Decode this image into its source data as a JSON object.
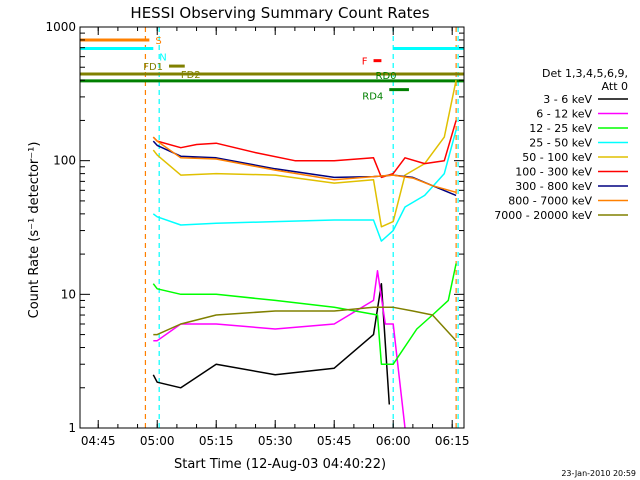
{
  "chart_data": {
    "type": "line",
    "title": "HESSI Observing Summary Count Rates",
    "xlabel": "Start Time (12-Aug-03 04:40:22)",
    "ylabel": "Count Rate (s⁻¹ detector⁻¹)",
    "yscale": "log",
    "xlim": [
      "04:40:22",
      "06:18:00"
    ],
    "ylim": [
      1,
      1000
    ],
    "x_ticks": [
      "04:45",
      "05:00",
      "05:15",
      "05:30",
      "05:45",
      "06:00",
      "06:15"
    ],
    "y_ticks": [
      "1",
      "10",
      "100",
      "1000"
    ],
    "grid": false,
    "legend_position": "right",
    "legend_title": [
      "Det 1,3,4,5,6,9,",
      "Att 0"
    ],
    "footer_date": "23-Jan-2010 20:59",
    "series": [
      {
        "name": "3 - 6 keV",
        "color": "#000000",
        "points": [
          [
            "04:59:00",
            2.5
          ],
          [
            "05:00:00",
            2.2
          ],
          [
            "05:06:00",
            2.0
          ],
          [
            "05:15:00",
            3.0
          ],
          [
            "05:30:00",
            2.5
          ],
          [
            "05:45:00",
            2.8
          ],
          [
            "05:55:00",
            5.0
          ],
          [
            "05:57:00",
            12.0
          ],
          [
            "05:59:00",
            1.5
          ]
        ]
      },
      {
        "name": "6 - 12 keV",
        "color": "#ff00ff",
        "points": [
          [
            "04:59:00",
            4.5
          ],
          [
            "05:00:00",
            4.5
          ],
          [
            "05:06:00",
            6.0
          ],
          [
            "05:15:00",
            6.0
          ],
          [
            "05:30:00",
            5.5
          ],
          [
            "05:45:00",
            6.0
          ],
          [
            "05:55:00",
            9.0
          ],
          [
            "05:56:00",
            15.0
          ],
          [
            "05:58:00",
            6.0
          ],
          [
            "06:00:00",
            6.0
          ],
          [
            "06:03:00",
            1.0
          ]
        ]
      },
      {
        "name": "12 - 25 keV",
        "color": "#00ff00",
        "points": [
          [
            "04:59:00",
            12.0
          ],
          [
            "05:00:00",
            11.0
          ],
          [
            "05:06:00",
            10.0
          ],
          [
            "05:15:00",
            10.0
          ],
          [
            "05:30:00",
            9.0
          ],
          [
            "05:45:00",
            8.0
          ],
          [
            "05:56:00",
            7.0
          ],
          [
            "05:57:00",
            3.0
          ],
          [
            "06:00:00",
            3.0
          ],
          [
            "06:06:00",
            5.5
          ],
          [
            "06:10:00",
            7.0
          ],
          [
            "06:14:00",
            9.0
          ],
          [
            "06:16:00",
            17.0
          ]
        ]
      },
      {
        "name": "25 - 50 keV",
        "color": "#00ffff",
        "points": [
          [
            "04:59:00",
            40.0
          ],
          [
            "05:00:00",
            38.0
          ],
          [
            "05:06:00",
            33.0
          ],
          [
            "05:15:00",
            34.0
          ],
          [
            "05:30:00",
            35.0
          ],
          [
            "05:45:00",
            36.0
          ],
          [
            "05:55:00",
            36.0
          ],
          [
            "05:57:00",
            25.0
          ],
          [
            "06:00:00",
            30.0
          ],
          [
            "06:03:00",
            45.0
          ],
          [
            "06:08:00",
            55.0
          ],
          [
            "06:13:00",
            80.0
          ],
          [
            "06:16:00",
            170.0
          ]
        ]
      },
      {
        "name": "50 - 100 keV",
        "color": "#e0c000",
        "points": [
          [
            "04:59:00",
            120.0
          ],
          [
            "05:00:00",
            110.0
          ],
          [
            "05:06:00",
            78.0
          ],
          [
            "05:15:00",
            80.0
          ],
          [
            "05:30:00",
            78.0
          ],
          [
            "05:45:00",
            68.0
          ],
          [
            "05:55:00",
            72.0
          ],
          [
            "05:57:00",
            32.0
          ],
          [
            "06:00:00",
            35.0
          ],
          [
            "06:03:00",
            78.0
          ],
          [
            "06:08:00",
            95.0
          ],
          [
            "06:13:00",
            150.0
          ],
          [
            "06:16:00",
            400.0
          ]
        ]
      },
      {
        "name": "100 - 300 keV",
        "color": "#ff0000",
        "points": [
          [
            "04:59:00",
            150.0
          ],
          [
            "05:00:00",
            140.0
          ],
          [
            "05:06:00",
            125.0
          ],
          [
            "05:10:00",
            132.0
          ],
          [
            "05:15:00",
            135.0
          ],
          [
            "05:25:00",
            115.0
          ],
          [
            "05:35:00",
            100.0
          ],
          [
            "05:45:00",
            100.0
          ],
          [
            "05:55:00",
            105.0
          ],
          [
            "05:57:00",
            75.0
          ],
          [
            "06:00:00",
            80.0
          ],
          [
            "06:03:00",
            105.0
          ],
          [
            "06:08:00",
            95.0
          ],
          [
            "06:13:00",
            100.0
          ],
          [
            "06:16:00",
            200.0
          ]
        ]
      },
      {
        "name": "300 - 800 keV",
        "color": "#000080",
        "points": [
          [
            "04:59:00",
            140.0
          ],
          [
            "05:00:00",
            130.0
          ],
          [
            "05:06:00",
            108.0
          ],
          [
            "05:15:00",
            105.0
          ],
          [
            "05:30:00",
            87.0
          ],
          [
            "05:45:00",
            75.0
          ],
          [
            "05:55:00",
            76.0
          ],
          [
            "06:00:00",
            78.0
          ],
          [
            "06:05:00",
            75.0
          ],
          [
            "06:10:00",
            65.0
          ],
          [
            "06:16:00",
            55.0
          ]
        ]
      },
      {
        "name": "800 - 7000 keV",
        "color": "#ff8000",
        "points": [
          [
            "04:59:00",
            150.0
          ],
          [
            "05:00:00",
            140.0
          ],
          [
            "05:06:00",
            105.0
          ],
          [
            "05:15:00",
            103.0
          ],
          [
            "05:30:00",
            85.0
          ],
          [
            "05:45:00",
            72.0
          ],
          [
            "05:55:00",
            76.0
          ],
          [
            "06:00:00",
            78.0
          ],
          [
            "06:05:00",
            74.0
          ],
          [
            "06:10:00",
            65.0
          ],
          [
            "06:16:00",
            58.0
          ]
        ]
      },
      {
        "name": "7000 - 20000 keV",
        "color": "#808000",
        "points": [
          [
            "04:59:00",
            5.0
          ],
          [
            "05:00:00",
            5.0
          ],
          [
            "05:06:00",
            6.0
          ],
          [
            "05:15:00",
            7.0
          ],
          [
            "05:30:00",
            7.5
          ],
          [
            "05:45:00",
            7.5
          ],
          [
            "05:55:00",
            8.0
          ],
          [
            "06:00:00",
            8.0
          ],
          [
            "06:05:00",
            7.5
          ],
          [
            "06:10:00",
            7.0
          ],
          [
            "06:16:00",
            4.5
          ]
        ]
      }
    ],
    "flag_bars": [
      {
        "label": "S",
        "color": "#ff8000",
        "y": 800,
        "start": "04:40:22",
        "end": "04:58:00"
      },
      {
        "label": "N",
        "color": "#00ffff",
        "y": 690,
        "start": "04:40:22",
        "end": "04:59:00"
      },
      {
        "label": "N",
        "color": "#00ffff",
        "y": 690,
        "start": "06:00:00",
        "end": "06:18:00"
      },
      {
        "label": "F",
        "color": "#ff0000",
        "y": 560,
        "start": "05:55:00",
        "end": "05:57:00"
      },
      {
        "label": "FD1",
        "color": "#808000",
        "y": 510,
        "start": "05:03:00",
        "end": "05:07:00"
      },
      {
        "label": "FD2",
        "color": "#808000",
        "y": 445,
        "start": "04:40:22",
        "end": "06:18:00"
      },
      {
        "label": "RD0",
        "color": "#008000",
        "y": 395,
        "start": "04:40:22",
        "end": "06:18:00"
      },
      {
        "label": "RD4",
        "color": "#008000",
        "y": 340,
        "start": "05:59:00",
        "end": "06:04:00"
      }
    ],
    "vertical_markers": [
      {
        "time": "04:57:00",
        "color": "#ff8000",
        "style": "dashed"
      },
      {
        "time": "05:00:30",
        "color": "#00ffff",
        "style": "dashed"
      },
      {
        "time": "06:00:00",
        "color": "#00ffff",
        "style": "dashed"
      },
      {
        "time": "06:16:00",
        "color": "#ff8000",
        "style": "dashed"
      },
      {
        "time": "06:16:30",
        "color": "#00ffff",
        "style": "dashed"
      }
    ]
  }
}
